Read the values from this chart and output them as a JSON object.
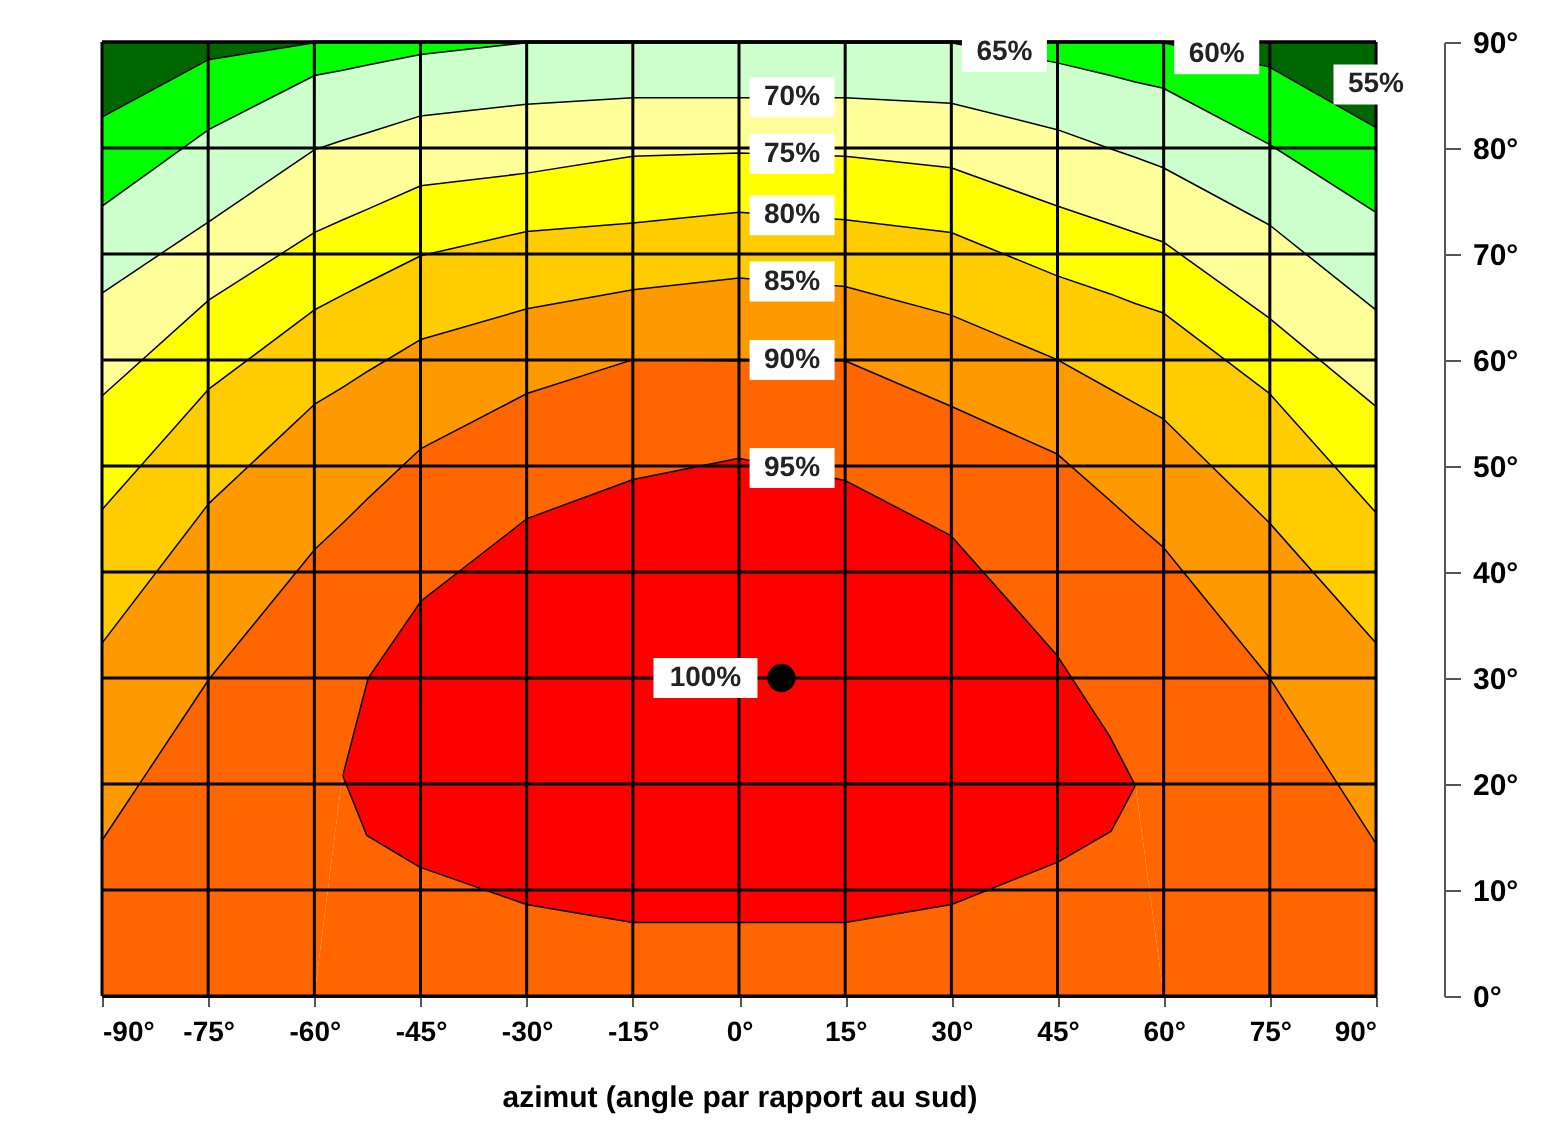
{
  "chart_data": {
    "type": "area",
    "stacked": true,
    "xlabel": "azimut (angle par rapport au sud)",
    "xlim": [
      -90,
      90
    ],
    "ylim": [
      0,
      90
    ],
    "xticks": [
      {
        "value": -90,
        "label": "-90°"
      },
      {
        "value": -75,
        "label": "-75°"
      },
      {
        "value": -60,
        "label": "-60°"
      },
      {
        "value": -45,
        "label": "-45°"
      },
      {
        "value": -30,
        "label": "-30°"
      },
      {
        "value": -15,
        "label": "-15°"
      },
      {
        "value": 0,
        "label": "0°"
      },
      {
        "value": 15,
        "label": "15°"
      },
      {
        "value": 30,
        "label": "30°"
      },
      {
        "value": 45,
        "label": "45°"
      },
      {
        "value": 60,
        "label": "60°"
      },
      {
        "value": 75,
        "label": "75°"
      },
      {
        "value": 90,
        "label": "90°"
      }
    ],
    "yticks": [
      {
        "value": 0,
        "label": "0°"
      },
      {
        "value": 10,
        "label": "10°"
      },
      {
        "value": 20,
        "label": "20°"
      },
      {
        "value": 30,
        "label": "30°"
      },
      {
        "value": 40,
        "label": "40°"
      },
      {
        "value": 50,
        "label": "50°"
      },
      {
        "value": 60,
        "label": "60°"
      },
      {
        "value": 70,
        "label": "70°"
      },
      {
        "value": 80,
        "label": "80°"
      },
      {
        "value": 90,
        "label": "90°"
      }
    ],
    "grid": true,
    "x": [
      -90,
      -75,
      -60,
      -56,
      -52.5,
      -45,
      -30,
      -15,
      0,
      15,
      30,
      45,
      52.5,
      56,
      60,
      75,
      90
    ],
    "series": [
      {
        "type": "area",
        "color": "#ff6600",
        "values": [
          0,
          0,
          0,
          21,
          15.2,
          12.2,
          8.7,
          7,
          7,
          7,
          8.7,
          12.7,
          15.6,
          20,
          0,
          0,
          0
        ]
      },
      {
        "type": "area",
        "color": "#ff0000",
        "values": [
          0,
          0,
          0,
          0,
          14.8,
          25.1,
          36.4,
          41.8,
          43.8,
          41.7,
          34.8,
          19.5,
          8.9,
          0,
          0,
          0,
          0
        ]
      },
      {
        "type": "area",
        "color": "#ff6600",
        "values": [
          14.8,
          29.9,
          42.2,
          23.7,
          17.0,
          14.4,
          11.8,
          11.3,
          9.2,
          11.3,
          12.2,
          19.0,
          22.3,
          24.7,
          42.4,
          30.1,
          14.5
        ]
      },
      {
        "type": "area",
        "color": "#ff9900",
        "values": [
          18.6,
          16.6,
          13.7,
          12.8,
          12.0,
          10.3,
          8.0,
          6.6,
          7.8,
          7.0,
          8.6,
          8.9,
          10.5,
          11.3,
          12.1,
          14.6,
          18.9
        ]
      },
      {
        "type": "area",
        "color": "#ffcc00",
        "values": [
          12.6,
          10.8,
          8.9,
          8.7,
          8.4,
          7.9,
          7.3,
          6.3,
          6.2,
          6.3,
          7.8,
          7.9,
          9.0,
          9.4,
          10.0,
          12.2,
          12.3
        ]
      },
      {
        "type": "area",
        "color": "#ffff00",
        "values": [
          10.7,
          8.4,
          7.3,
          7.1,
          6.9,
          6.6,
          5.5,
          6.3,
          5.6,
          6.0,
          6.1,
          6.6,
          6.6,
          6.7,
          6.7,
          7.1,
          10.0
        ]
      },
      {
        "type": "area",
        "color": "#ffff99",
        "values": [
          9.7,
          7.4,
          7.8,
          7.5,
          7.2,
          6.6,
          6.5,
          5.5,
          5.2,
          5.5,
          6.1,
          7.2,
          7.1,
          7.1,
          7.0,
          8.8,
          9.1
        ]
      },
      {
        "type": "area",
        "color": "#ccffcc",
        "values": [
          8.2,
          8.7,
          7.0,
          6.6,
          6.4,
          5.8,
          5.8,
          5.2,
          5.2,
          5.2,
          5.7,
          6.3,
          6.9,
          7.1,
          7.5,
          7.6,
          9.2
        ]
      },
      {
        "type": "area",
        "color": "#00ff00",
        "values": [
          8.4,
          6.6,
          3.1,
          2.6,
          2.1,
          1.1,
          0,
          0,
          0,
          0,
          0,
          1.9,
          3.1,
          3.7,
          4.3,
          7.3,
          8.0
        ]
      },
      {
        "type": "area",
        "color": "#006600",
        "values": [
          7,
          1.6,
          0,
          0,
          0,
          0,
          0,
          0,
          0,
          0,
          0,
          0,
          0,
          0,
          0,
          2.3,
          8
        ]
      },
      {
        "type": "scatter",
        "color": "#000000",
        "x": [
          6
        ],
        "values": [
          30
        ]
      }
    ],
    "annotations": [
      {
        "text": "55%",
        "x": 90,
        "y": 86
      },
      {
        "text": "60%",
        "x": 67.5,
        "y": 88.85
      },
      {
        "text": "65%",
        "x": 37.5,
        "y": 89.05
      },
      {
        "text": "70%",
        "x": 7.5,
        "y": 84.8
      },
      {
        "text": "75%",
        "x": 7.5,
        "y": 79.45
      },
      {
        "text": "80%",
        "x": 7.5,
        "y": 73.65
      },
      {
        "text": "85%",
        "x": 7.5,
        "y": 67.4
      },
      {
        "text": "90%",
        "x": 7.5,
        "y": 60
      },
      {
        "text": "95%",
        "x": 7.5,
        "y": 49.8
      },
      {
        "text": "100%",
        "x": 6,
        "y": 30
      }
    ]
  }
}
